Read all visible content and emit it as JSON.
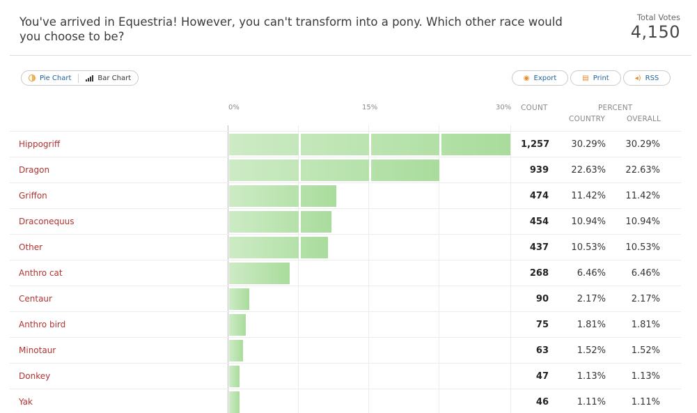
{
  "poll": {
    "question": "You've arrived in Equestria! However, you can't transform into a pony. Which other race would you choose to be?",
    "total_votes_label": "Total Votes",
    "total_votes": "4,150"
  },
  "toolbar": {
    "pie_chart_label": "Pie Chart",
    "bar_chart_label": "Bar Chart",
    "export_label": "Export",
    "print_label": "Print",
    "rss_label": "RSS"
  },
  "axis": {
    "ticks": [
      "0%",
      "15%",
      "30%"
    ],
    "max_percent": 30
  },
  "columns": {
    "count": "COUNT",
    "percent": "PERCENT",
    "country": "COUNTRY",
    "overall": "OVERALL"
  },
  "colors": {
    "label": "#b0322f",
    "bar_start": "#cdebc5",
    "bar_end": "#a9dc9c",
    "link": "#1f5f99",
    "icon_accent": "#e8892a"
  },
  "chart_data": {
    "type": "bar",
    "categories": [
      "Hippogriff",
      "Dragon",
      "Griffon",
      "Draconequus",
      "Other",
      "Anthro cat",
      "Centaur",
      "Anthro bird",
      "Minotaur",
      "Donkey",
      "Yak"
    ],
    "values": [
      30.29,
      22.63,
      11.42,
      10.94,
      10.53,
      6.46,
      2.17,
      1.81,
      1.52,
      1.13,
      1.11
    ],
    "xlim": [
      0,
      30
    ]
  },
  "rows": [
    {
      "label": "Hippogriff",
      "count": "1,257",
      "country": "30.29%",
      "overall": "30.29%"
    },
    {
      "label": "Dragon",
      "count": "939",
      "country": "22.63%",
      "overall": "22.63%"
    },
    {
      "label": "Griffon",
      "count": "474",
      "country": "11.42%",
      "overall": "11.42%"
    },
    {
      "label": "Draconequus",
      "count": "454",
      "country": "10.94%",
      "overall": "10.94%"
    },
    {
      "label": "Other",
      "count": "437",
      "country": "10.53%",
      "overall": "10.53%"
    },
    {
      "label": "Anthro cat",
      "count": "268",
      "country": "6.46%",
      "overall": "6.46%"
    },
    {
      "label": "Centaur",
      "count": "90",
      "country": "2.17%",
      "overall": "2.17%"
    },
    {
      "label": "Anthro bird",
      "count": "75",
      "country": "1.81%",
      "overall": "1.81%"
    },
    {
      "label": "Minotaur",
      "count": "63",
      "country": "1.52%",
      "overall": "1.52%"
    },
    {
      "label": "Donkey",
      "count": "47",
      "country": "1.13%",
      "overall": "1.13%"
    },
    {
      "label": "Yak",
      "count": "46",
      "country": "1.11%",
      "overall": "1.11%"
    }
  ]
}
